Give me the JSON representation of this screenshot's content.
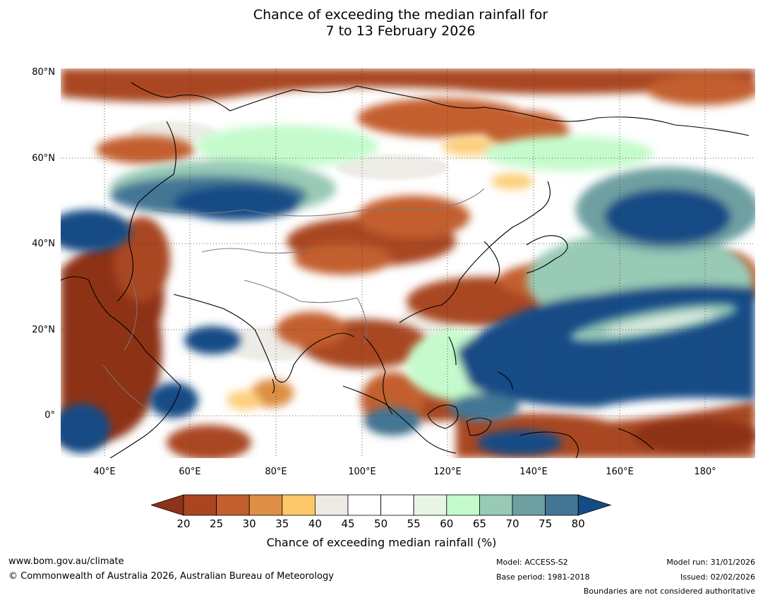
{
  "title": {
    "line1": "Chance of exceeding the median rainfall for",
    "line2": "7 to 13 February 2026"
  },
  "map": {
    "lat_labels": [
      "80°N",
      "60°N",
      "40°N",
      "20°N",
      "0°"
    ],
    "lon_labels": [
      "40°E",
      "60°E",
      "80°E",
      "100°E",
      "120°E",
      "140°E",
      "160°E",
      "180°"
    ],
    "lat_range": [
      -10,
      80
    ],
    "lon_range": [
      30,
      191
    ]
  },
  "legend": {
    "ticks": [
      "20",
      "25",
      "30",
      "35",
      "40",
      "45",
      "50",
      "55",
      "60",
      "65",
      "70",
      "75",
      "80"
    ],
    "colors": [
      "#8e3219",
      "#a94621",
      "#c35e2e",
      "#dd8f45",
      "#fdc869",
      "#edeae4",
      "#ffffff",
      "#ffffff",
      "#e8f5e6",
      "#c5fbcc",
      "#98cab6",
      "#6ea0a2",
      "#427694",
      "#134c86"
    ],
    "label": "Chance of exceeding median rainfall (%)"
  },
  "footer": {
    "website": "www.bom.gov.au/climate",
    "copyright": "© Commonwealth of Australia 2026, Australian Bureau of Meteorology",
    "model": "Model: ACCESS-S2",
    "base_period": "Base period: 1981-2018",
    "model_run": "Model run: 31/01/2026",
    "issued": "Issued: 02/02/2026",
    "disclaimer": "Boundaries are not considered authoritative"
  }
}
